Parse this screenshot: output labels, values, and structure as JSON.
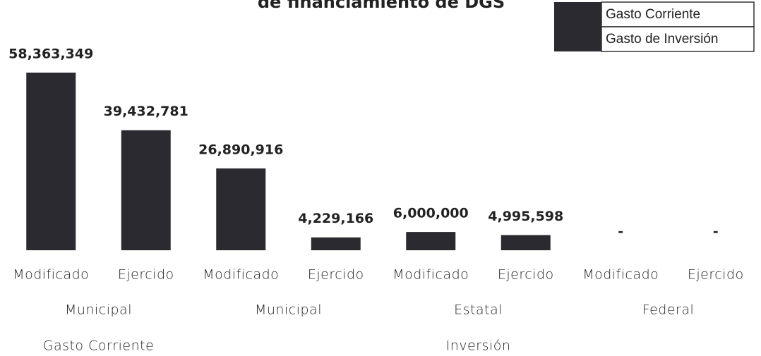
{
  "chart_data": {
    "type": "bar",
    "title": "de financiamiento de DGS",
    "categories": [
      "Modificado",
      "Ejercido",
      "Modificado",
      "Ejercido",
      "Modificado",
      "Ejercido",
      "Modificado",
      "Ejercido"
    ],
    "groups": [
      {
        "name": "Municipal",
        "span": 2
      },
      {
        "name": "Municipal",
        "span": 2
      },
      {
        "name": "Estatal",
        "span": 2
      },
      {
        "name": "Federal",
        "span": 2
      }
    ],
    "supergroups": [
      {
        "name": "Gasto Corriente",
        "span": 2
      },
      {
        "name": "Inversión",
        "span": 6
      }
    ],
    "series": [
      {
        "name": "Gasto Corriente",
        "color": "#2a2a30",
        "values": [
          58363349,
          39432781,
          null,
          null,
          null,
          null,
          null,
          null
        ],
        "value_labels": [
          "58,363,349",
          "39,432,781",
          null,
          null,
          null,
          null,
          null,
          null
        ]
      },
      {
        "name": "Gasto de Inversión",
        "color": "#2a2a30",
        "values": [
          null,
          null,
          26890916,
          4229166,
          6000000,
          4995598,
          0,
          0
        ],
        "value_labels": [
          null,
          null,
          "26,890,916",
          "4,229,166",
          "6,000,000",
          "4,995,598",
          "-",
          "-"
        ]
      }
    ]
  }
}
